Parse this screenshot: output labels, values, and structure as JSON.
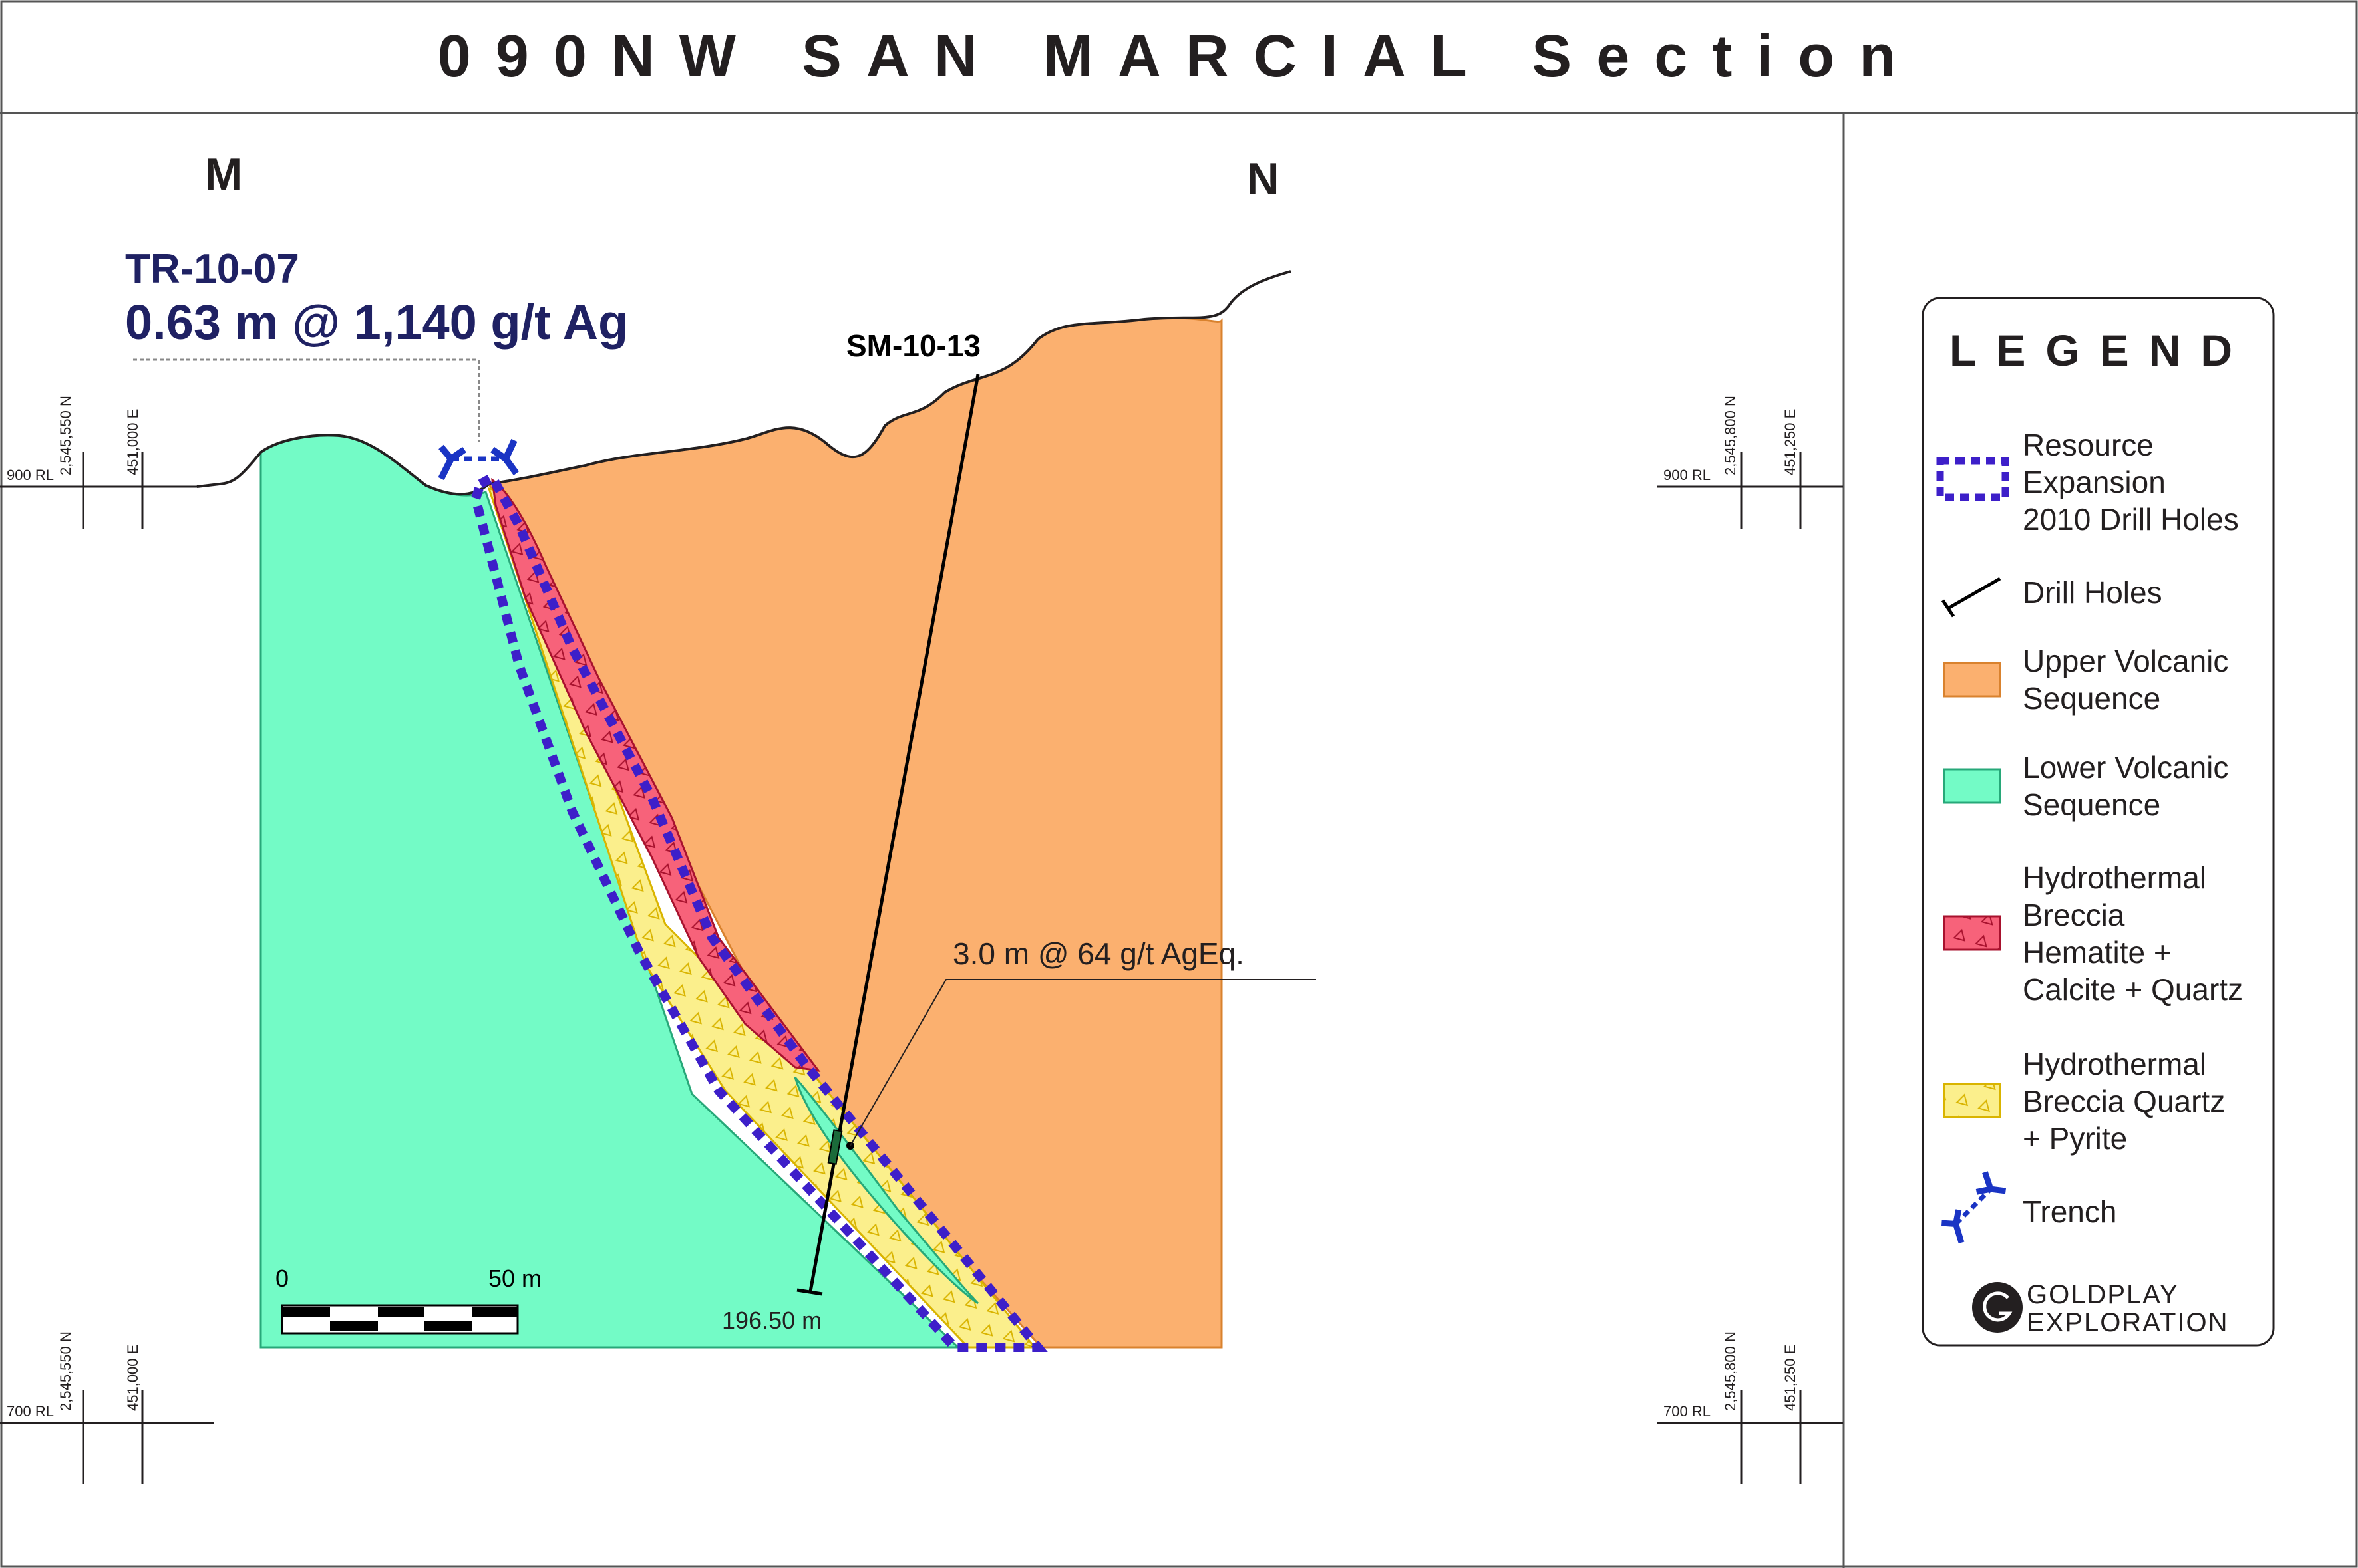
{
  "title": "090NW SAN MARCIAL Section",
  "section_ends": {
    "left": "M",
    "right": "N"
  },
  "coordinates": {
    "upper_left": {
      "rl": "900 RL",
      "northing": "2,545,550 N",
      "easting": "451,000 E"
    },
    "upper_right": {
      "rl": "900 RL",
      "northing": "2,545,800 N",
      "easting": "451,250 E"
    },
    "lower_left": {
      "rl": "700 RL",
      "northing": "2,545,550 N",
      "easting": "451,000 E"
    },
    "lower_right": {
      "rl": "700 RL",
      "northing": "2,545,800 N",
      "easting": "451,250 E"
    }
  },
  "trench": {
    "id": "TR-10-07",
    "result": "0.63 m @ 1,140 g/t Ag"
  },
  "drill_hole": {
    "id": "SM-10-13",
    "intercept": "3.0 m @ 64 g/t AgEq.",
    "depth": "196.50 m"
  },
  "scale_bar": {
    "start": "0",
    "end": "50 m"
  },
  "legend": {
    "title": "LEGEND",
    "items": [
      {
        "key": "resource",
        "lines": [
          "Resource",
          "Expansion",
          "2010 Drill Holes"
        ],
        "color": "#3d1fc9"
      },
      {
        "key": "drill",
        "lines": [
          "Drill Holes"
        ],
        "color": "#000000"
      },
      {
        "key": "upper",
        "lines": [
          "Upper Volcanic",
          "Sequence"
        ],
        "color": "#fbb06f"
      },
      {
        "key": "lower",
        "lines": [
          "Lower Volcanic",
          "Sequence"
        ],
        "color": "#73fbc6"
      },
      {
        "key": "hem",
        "lines": [
          "Hydrothermal",
          "Breccia",
          "Hematite +",
          "Calcite + Quartz"
        ],
        "color": "#f7627a"
      },
      {
        "key": "pyr",
        "lines": [
          "Hydrothermal",
          "Breccia Quartz",
          "+ Pyrite"
        ],
        "color": "#fbef8c"
      },
      {
        "key": "trench",
        "lines": [
          "Trench"
        ],
        "color": "#1a34c4"
      }
    ]
  },
  "logo": {
    "line1": "GOLDPLAY",
    "line2": "EXPLORATION"
  },
  "colors": {
    "upper_volcanic": "#fbb06f",
    "lower_volcanic": "#73fbc6",
    "hematite_breccia": "#f7627a",
    "pyrite_breccia": "#fbef8c",
    "resource_outline": "#3d1fc9",
    "trench": "#1a34c4",
    "annotation": "#1f2163"
  }
}
